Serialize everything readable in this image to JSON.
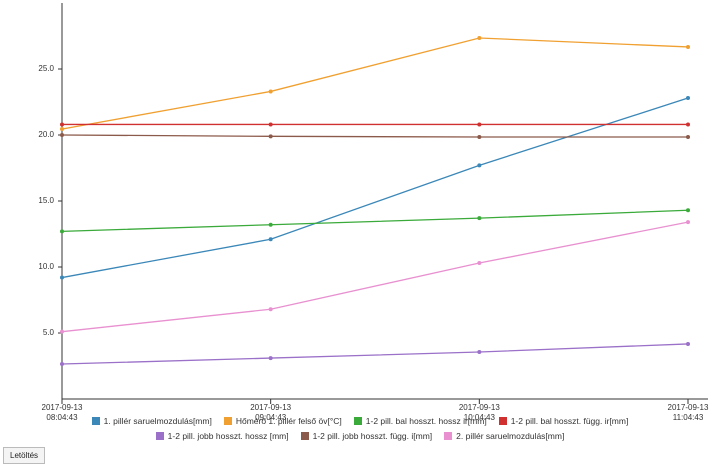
{
  "chart_data": {
    "type": "line",
    "categories": [
      "2017-09-13 08:04:43",
      "2017-09-13 09:04:43",
      "2017-09-13 10:04:43",
      "2017-09-13 11:04:43"
    ],
    "series": [
      {
        "name": "1. pillér saruelmozdulás[mm]",
        "color": "#3a87b8",
        "values": [
          9.2,
          12.1,
          17.7,
          22.8
        ]
      },
      {
        "name": "Hőmérő 1. pillér felső öv[°C]",
        "color": "#f0a030",
        "values": [
          20.45,
          23.3,
          27.35,
          26.67
        ]
      },
      {
        "name": "1-2 pill. bal hosszt. hossz ir[mm]",
        "color": "#3aaa3a",
        "values": [
          12.7,
          13.2,
          13.7,
          14.3
        ]
      },
      {
        "name": "1-2 pill. bal hosszt. függ. ir[mm]",
        "color": "#d03030",
        "values": [
          20.8,
          20.8,
          20.8,
          20.8
        ]
      },
      {
        "name": "1-2 pill. jobb hosszt. hossz [mm]",
        "color": "#9a70c8",
        "values": [
          2.65,
          3.1,
          3.56,
          4.17
        ]
      },
      {
        "name": "1-2 pill. jobb hosszt. függ. i[mm]",
        "color": "#8c5a4a",
        "values": [
          20.0,
          19.9,
          19.85,
          19.85
        ]
      },
      {
        "name": "2. pillér saruelmozdulás[mm]",
        "color": "#e890d0",
        "values": [
          5.1,
          6.8,
          10.3,
          13.4
        ]
      }
    ],
    "ylim": [
      0,
      30
    ],
    "yticks": [
      {
        "value": 5,
        "label": "5.0"
      },
      {
        "value": 10,
        "label": "10.0"
      },
      {
        "value": 15,
        "label": "15.0"
      },
      {
        "value": 20,
        "label": "20.0"
      },
      {
        "value": 25,
        "label": "25.0"
      }
    ],
    "button": "Letöltés"
  }
}
